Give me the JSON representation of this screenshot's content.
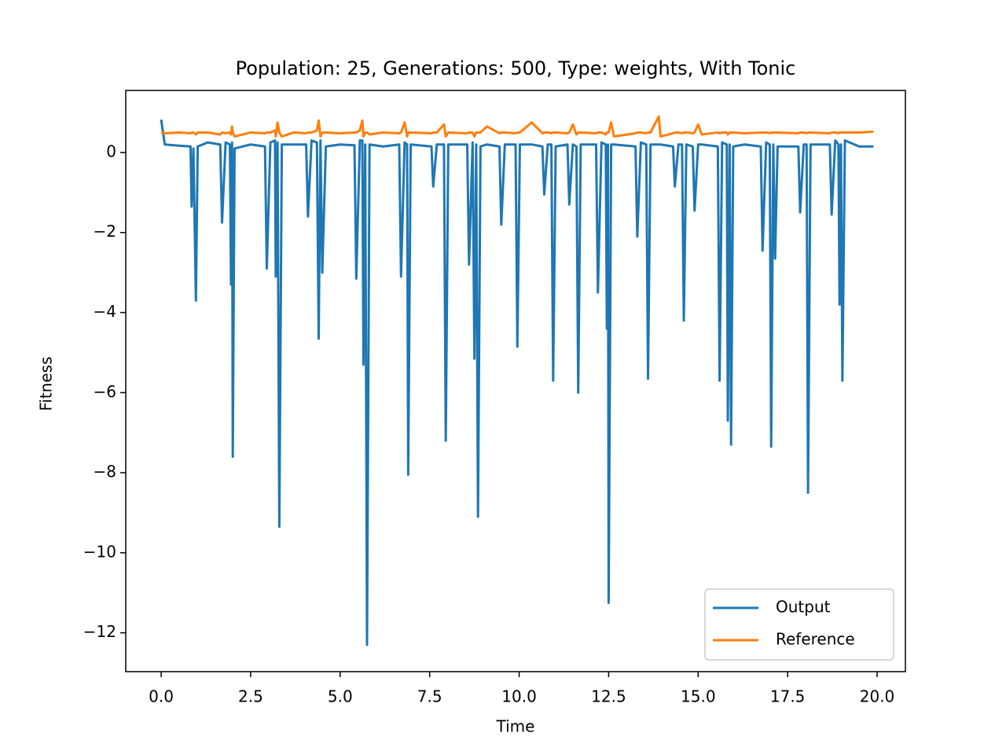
{
  "chart_data": {
    "type": "line",
    "title": "Population: 25, Generations: 500, Type: weights, With Tonic",
    "x_label": "Time",
    "y_label": "Fitness",
    "x": [
      0,
      0.1,
      0.5,
      0.82,
      0.85,
      0.9,
      0.97,
      1.02,
      1.3,
      1.65,
      1.7,
      1.8,
      1.92,
      1.95,
      1.98,
      2.0,
      2.05,
      2.5,
      2.9,
      2.95,
      3.05,
      3.18,
      3.2,
      3.25,
      3.3,
      3.37,
      3.7,
      4.05,
      4.1,
      4.2,
      4.35,
      4.4,
      4.45,
      4.5,
      4.6,
      5.0,
      5.4,
      5.45,
      5.55,
      5.62,
      5.65,
      5.7,
      5.75,
      5.82,
      6.2,
      6.65,
      6.7,
      6.8,
      6.87,
      6.9,
      6.97,
      7.55,
      7.6,
      7.7,
      7.9,
      7.95,
      8.02,
      8.55,
      8.6,
      8.7,
      8.75,
      8.8,
      8.85,
      8.92,
      9.1,
      9.45,
      9.5,
      9.6,
      9.9,
      9.95,
      10.02,
      10.35,
      10.65,
      10.7,
      10.8,
      10.9,
      10.95,
      11.02,
      11.35,
      11.4,
      11.5,
      11.6,
      11.65,
      11.72,
      12.15,
      12.2,
      12.3,
      12.42,
      12.45,
      12.48,
      12.5,
      12.57,
      12.65,
      13.25,
      13.3,
      13.4,
      13.55,
      13.6,
      13.67,
      13.9,
      13.95,
      14.3,
      14.35,
      14.45,
      14.55,
      14.6,
      14.67,
      14.85,
      14.9,
      15.0,
      15.1,
      15.55,
      15.6,
      15.67,
      15.8,
      15.83,
      15.88,
      15.92,
      15.98,
      16.3,
      16.75,
      16.8,
      16.9,
      17.0,
      17.04,
      17.1,
      17.15,
      17.22,
      17.8,
      17.85,
      17.95,
      18.03,
      18.07,
      18.14,
      18.68,
      18.73,
      18.83,
      18.92,
      18.95,
      18.99,
      19.03,
      19.1,
      19.5,
      19.9
    ],
    "series": [
      {
        "name": "Output",
        "color": "#1f77b4",
        "values": [
          0.82,
          0.2,
          0.17,
          0.15,
          -1.35,
          0.1,
          -3.7,
          0.15,
          0.25,
          0.2,
          -1.75,
          0.25,
          0.2,
          -3.3,
          0.25,
          -7.6,
          0.1,
          0.2,
          0.15,
          -2.9,
          0.25,
          0.3,
          -3.1,
          0.25,
          -9.35,
          0.2,
          0.2,
          0.2,
          -1.6,
          0.3,
          0.25,
          -4.65,
          0.3,
          -3.0,
          0.15,
          0.2,
          0.18,
          -3.15,
          0.3,
          0.3,
          -5.3,
          0.2,
          -12.3,
          0.2,
          0.15,
          0.2,
          -3.1,
          0.25,
          0.2,
          -8.05,
          0.2,
          0.15,
          -0.85,
          0.2,
          0.2,
          -7.2,
          0.2,
          0.2,
          -2.8,
          0.25,
          -5.15,
          0.2,
          -9.1,
          0.15,
          0.2,
          0.15,
          -1.8,
          0.2,
          0.2,
          -4.85,
          0.2,
          0.2,
          0.15,
          -1.05,
          0.2,
          0.2,
          -5.7,
          0.15,
          0.2,
          -1.3,
          0.2,
          0.15,
          -6.0,
          0.2,
          0.2,
          -3.5,
          0.25,
          0.2,
          -4.4,
          0.2,
          -11.25,
          0.2,
          0.2,
          0.15,
          -2.1,
          0.25,
          0.2,
          -5.65,
          0.2,
          0.2,
          0.2,
          0.15,
          -0.85,
          0.2,
          0.2,
          -4.2,
          0.2,
          0.15,
          -1.45,
          0.2,
          0.2,
          0.15,
          -5.7,
          0.25,
          0.2,
          -6.7,
          0.2,
          -7.3,
          0.15,
          0.2,
          0.15,
          -2.45,
          0.25,
          0.2,
          -7.35,
          0.2,
          -2.65,
          0.15,
          0.15,
          -1.5,
          0.2,
          0.2,
          -8.5,
          0.2,
          0.2,
          -1.55,
          0.3,
          0.2,
          -3.8,
          0.2,
          -5.7,
          0.3,
          0.15,
          0.15
        ]
      },
      {
        "name": "Reference",
        "color": "#ff7f0e",
        "values": [
          0.5,
          0.48,
          0.5,
          0.48,
          0.5,
          0.5,
          0.45,
          0.5,
          0.5,
          0.45,
          0.5,
          0.48,
          0.5,
          0.45,
          0.65,
          0.5,
          0.4,
          0.5,
          0.48,
          0.5,
          0.5,
          0.55,
          0.4,
          0.75,
          0.5,
          0.4,
          0.5,
          0.48,
          0.5,
          0.5,
          0.55,
          0.8,
          0.4,
          0.5,
          0.5,
          0.48,
          0.5,
          0.5,
          0.55,
          0.8,
          0.4,
          0.5,
          0.5,
          0.45,
          0.5,
          0.48,
          0.5,
          0.75,
          0.4,
          0.5,
          0.5,
          0.48,
          0.5,
          0.5,
          0.7,
          0.4,
          0.5,
          0.48,
          0.5,
          0.5,
          0.4,
          0.5,
          0.5,
          0.5,
          0.65,
          0.48,
          0.5,
          0.5,
          0.48,
          0.5,
          0.5,
          0.75,
          0.48,
          0.5,
          0.5,
          0.48,
          0.5,
          0.5,
          0.48,
          0.5,
          0.7,
          0.45,
          0.5,
          0.5,
          0.48,
          0.5,
          0.5,
          0.45,
          0.5,
          0.5,
          0.5,
          0.75,
          0.4,
          0.48,
          0.5,
          0.5,
          0.48,
          0.5,
          0.5,
          0.9,
          0.4,
          0.48,
          0.5,
          0.5,
          0.48,
          0.5,
          0.5,
          0.48,
          0.5,
          0.7,
          0.45,
          0.5,
          0.48,
          0.5,
          0.5,
          0.45,
          0.5,
          0.5,
          0.5,
          0.48,
          0.5,
          0.5,
          0.5,
          0.48,
          0.5,
          0.5,
          0.5,
          0.5,
          0.48,
          0.5,
          0.5,
          0.48,
          0.5,
          0.5,
          0.48,
          0.5,
          0.5,
          0.48,
          0.5,
          0.5,
          0.5,
          0.5,
          0.5,
          0.52
        ]
      }
    ],
    "xlim": [
      -0.99,
      20.79
    ],
    "ylim": [
      -12.97,
      1.55
    ],
    "xticks": [
      {
        "value": 0,
        "label": "0.0"
      },
      2.5,
      {
        "value": 5,
        "label": "5.0"
      },
      7.5,
      {
        "value": 10,
        "label": "10.0"
      },
      12.5,
      {
        "value": 15,
        "label": "15.0"
      },
      17.5,
      {
        "value": 20,
        "label": "20.0"
      }
    ],
    "yticks": [
      {
        "value": -12,
        "label": "−12"
      },
      {
        "value": -10,
        "label": "−10"
      },
      {
        "value": -8,
        "label": "−8"
      },
      {
        "value": -6,
        "label": "−6"
      },
      {
        "value": -4,
        "label": "−4"
      },
      {
        "value": -2,
        "label": "−2"
      },
      0
    ],
    "grid": false,
    "legend": "lower right"
  }
}
